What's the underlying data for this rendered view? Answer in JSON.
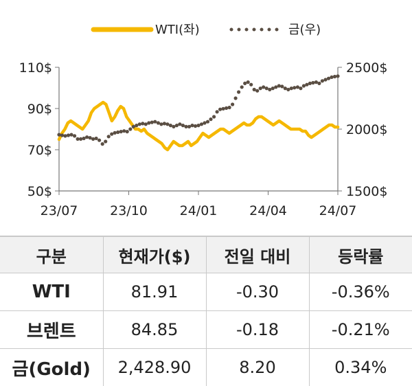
{
  "chart_data": {
    "type": "line",
    "x_tick_labels": [
      "23/07",
      "23/10",
      "24/01",
      "24/04",
      "24/07"
    ],
    "legend_position": "top-center",
    "grid": false,
    "series": [
      {
        "name": "WTI(좌)",
        "axis": "left",
        "style": "solid",
        "color": "#f5b800",
        "values": [
          75,
          78,
          80,
          83,
          84,
          83,
          82,
          81,
          80,
          82,
          84,
          88,
          90,
          91,
          92,
          93,
          92,
          88,
          84,
          86,
          89,
          91,
          90,
          86,
          84,
          82,
          80,
          80,
          79,
          80,
          78,
          77,
          76,
          75,
          74,
          73,
          71,
          70,
          72,
          74,
          73,
          72,
          72,
          73,
          74,
          72,
          73,
          74,
          76,
          78,
          77,
          76,
          77,
          78,
          79,
          80,
          80,
          79,
          78,
          79,
          80,
          81,
          82,
          83,
          82,
          82,
          83,
          85,
          86,
          86,
          85,
          84,
          83,
          82,
          83,
          84,
          83,
          82,
          81,
          80,
          80,
          80,
          80,
          79,
          79,
          77,
          76,
          77,
          78,
          79,
          80,
          81,
          82,
          82,
          81,
          81
        ]
      },
      {
        "name": "금(우)",
        "axis": "right",
        "style": "dotted",
        "color": "#5a4e43",
        "values": [
          1955,
          1950,
          1945,
          1950,
          1955,
          1945,
          1920,
          1920,
          1925,
          1935,
          1930,
          1920,
          1925,
          1910,
          1880,
          1900,
          1940,
          1960,
          1970,
          1975,
          1980,
          1985,
          1980,
          2000,
          2020,
          2030,
          2040,
          2045,
          2040,
          2050,
          2055,
          2060,
          2050,
          2040,
          2045,
          2040,
          2030,
          2020,
          2030,
          2040,
          2030,
          2020,
          2020,
          2030,
          2025,
          2030,
          2040,
          2050,
          2060,
          2080,
          2100,
          2140,
          2160,
          2165,
          2170,
          2175,
          2200,
          2250,
          2300,
          2340,
          2370,
          2380,
          2360,
          2320,
          2310,
          2330,
          2340,
          2330,
          2320,
          2330,
          2340,
          2350,
          2345,
          2330,
          2320,
          2330,
          2335,
          2340,
          2330,
          2350,
          2360,
          2370,
          2375,
          2380,
          2370,
          2390,
          2400,
          2410,
          2420,
          2425,
          2428.9
        ]
      }
    ],
    "left_axis": {
      "tick_labels": [
        "110$",
        "90$",
        "70$",
        "50$"
      ],
      "ticks": [
        110,
        90,
        70,
        50
      ],
      "range": [
        50,
        110
      ]
    },
    "right_axis": {
      "tick_labels": [
        "2500$",
        "2000$",
        "1500$"
      ],
      "ticks": [
        2500,
        2000,
        1500
      ],
      "range": [
        1500,
        2500
      ]
    }
  },
  "table": {
    "headers": [
      "구분",
      "현재가($)",
      "전일 대비",
      "등락률"
    ],
    "rows": [
      {
        "name": "WTI",
        "price": "81.91",
        "change": "-0.30",
        "rate": "-0.36%"
      },
      {
        "name": "브렌트",
        "price": "84.85",
        "change": "-0.18",
        "rate": "-0.21%"
      },
      {
        "name": "금(Gold)",
        "price": "2,428.90",
        "change": "8.20",
        "rate": "0.34%"
      }
    ]
  }
}
